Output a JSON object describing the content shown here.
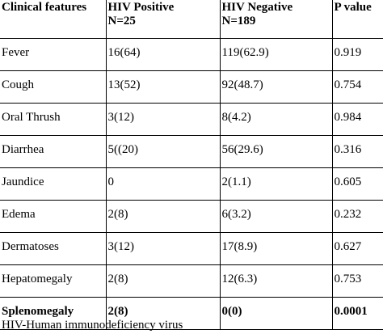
{
  "table": {
    "headers": [
      [
        "Clinical features",
        ""
      ],
      [
        "HIV Positive",
        "N=25"
      ],
      [
        "HIV Negative",
        "N=189"
      ],
      [
        "P value",
        ""
      ]
    ],
    "rows": [
      [
        "Fever",
        "16(64)",
        "119(62.9)",
        "0.919"
      ],
      [
        "Cough",
        "13(52)",
        "92(48.7)",
        "0.754"
      ],
      [
        "Oral Thrush",
        "3(12)",
        "8(4.2)",
        "0.984"
      ],
      [
        "Diarrhea",
        "5((20)",
        "56(29.6)",
        "0.316"
      ],
      [
        "Jaundice",
        "0",
        "2(1.1)",
        "0.605"
      ],
      [
        "Edema",
        "2(8)",
        "6(3.2)",
        "0.232"
      ],
      [
        "Dermatoses",
        "3(12)",
        "17(8.9)",
        "0.627"
      ],
      [
        "Hepatomegaly",
        "2(8)",
        "12(6.3)",
        "0.753"
      ],
      [
        "Splenomegaly",
        "2(8)",
        "0(0)",
        "0.0001"
      ]
    ]
  },
  "footnote": "HIV-Human immunodeficiency virus"
}
